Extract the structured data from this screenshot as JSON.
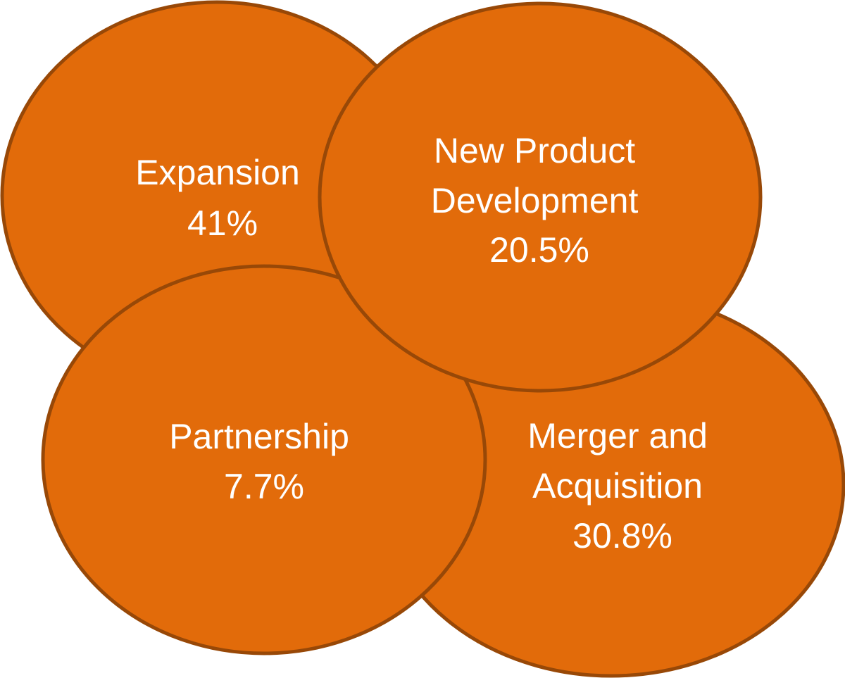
{
  "colors": {
    "fill": "#E26B0A",
    "stroke": "#984807",
    "text": "#FFFFFF"
  },
  "bubbles": [
    {
      "id": "expansion",
      "lines": [
        "Expansion",
        "41%"
      ],
      "percent": 41
    },
    {
      "id": "new-product-development",
      "lines": [
        "New Product",
        "Development",
        "20.5%"
      ],
      "percent": 20.5
    },
    {
      "id": "partnership",
      "lines": [
        "Partnership",
        "7.7%"
      ],
      "percent": 7.7
    },
    {
      "id": "merger-and-acquisition",
      "lines": [
        "Merger and",
        "Acquisition",
        "30.8%"
      ],
      "percent": 30.8
    }
  ]
}
